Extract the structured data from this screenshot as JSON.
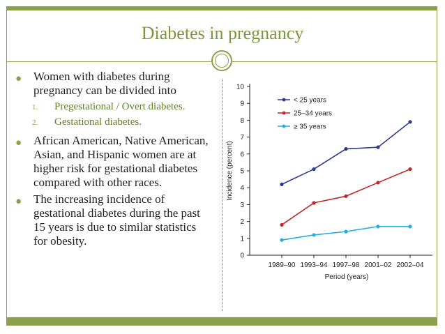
{
  "slide": {
    "title": "Diabetes in pregnancy",
    "bullets": [
      "Women with diabetes during pregnancy can be divided into",
      "African American, Native American, Asian, and Hispanic women are at higher risk for gestational diabetes compared with other races.",
      " The increasing incidence of gestational diabetes during the past 15 years is  due to similar statistics for obesity."
    ],
    "subitems": [
      {
        "num": "1.",
        "text": "Pregestational / Overt diabetes."
      },
      {
        "num": "2.",
        "text": "Gestational diabetes."
      }
    ]
  },
  "colors": {
    "accent": "#8aa04a",
    "title": "#7a9a3a",
    "subitem": "#5f7f2c"
  },
  "chart_data": {
    "type": "line",
    "title": "",
    "xlabel": "Period (years)",
    "ylabel": "Incidence (percent)",
    "categories": [
      "1989–90",
      "1993–94",
      "1997–98",
      "2001–02",
      "2002–04"
    ],
    "ylim": [
      0,
      10
    ],
    "yticks": [
      0,
      1,
      2,
      3,
      4,
      5,
      6,
      7,
      8,
      9,
      10
    ],
    "legend_position": "top-left",
    "series": [
      {
        "name": "< 25 years",
        "color": "#2b3a8c",
        "values": [
          4.2,
          5.1,
          6.3,
          6.4,
          7.9
        ]
      },
      {
        "name": "25–34 years",
        "color": "#c0262c",
        "values": [
          1.8,
          3.1,
          3.5,
          4.3,
          5.1
        ]
      },
      {
        "name": "≥ 35 years",
        "color": "#22b0e0",
        "values": [
          0.9,
          1.2,
          1.4,
          1.7,
          1.7
        ]
      }
    ]
  }
}
